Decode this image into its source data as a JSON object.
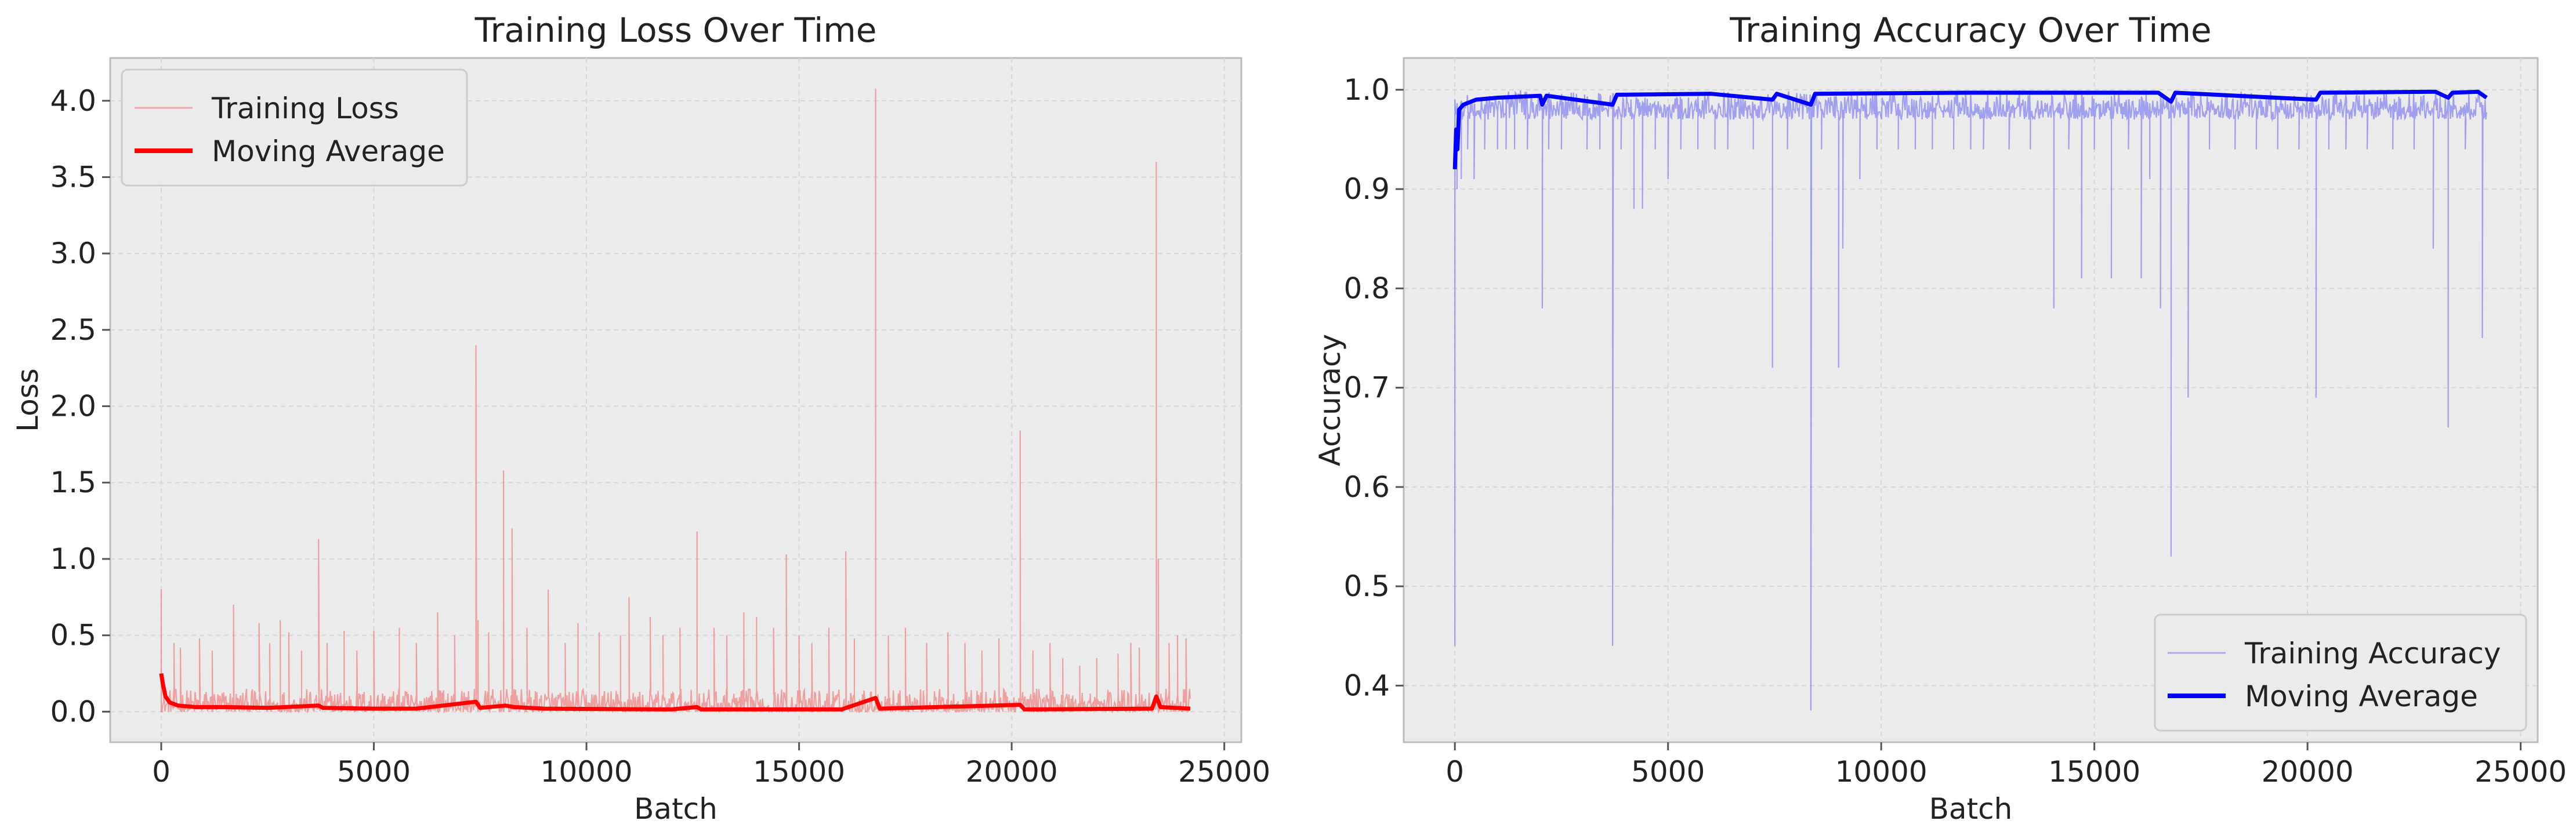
{
  "chart_data": [
    {
      "type": "line",
      "title": "Training Loss Over Time",
      "xlabel": "Batch",
      "ylabel": "Loss",
      "xlim": [
        -1200,
        25400
      ],
      "ylim": [
        -0.2,
        4.28
      ],
      "xticks": [
        0,
        5000,
        10000,
        15000,
        20000,
        25000
      ],
      "xtick_labels": [
        "0",
        "5000",
        "10000",
        "15000",
        "20000",
        "25000"
      ],
      "yticks": [
        0.0,
        0.5,
        1.0,
        1.5,
        2.0,
        2.5,
        3.0,
        3.5,
        4.0
      ],
      "ytick_labels": [
        "0.0",
        "0.5",
        "1.0",
        "1.5",
        "2.0",
        "2.5",
        "3.0",
        "3.5",
        "4.0"
      ],
      "grid": true,
      "legend_position": "upper left",
      "legend": [
        "Training Loss",
        "Moving Average"
      ],
      "colors": {
        "raw": "#f08080",
        "avg": "#ff0000"
      },
      "series": [
        {
          "name": "Training Loss",
          "style": "thin-light",
          "n_batches": 24200,
          "baseline_band": [
            0.0,
            0.15
          ],
          "spikes": [
            [
              0,
              0.8
            ],
            [
              300,
              0.45
            ],
            [
              450,
              0.42
            ],
            [
              900,
              0.48
            ],
            [
              1200,
              0.4
            ],
            [
              1700,
              0.7
            ],
            [
              2300,
              0.58
            ],
            [
              2550,
              0.45
            ],
            [
              2800,
              0.6
            ],
            [
              3000,
              0.52
            ],
            [
              3300,
              0.4
            ],
            [
              3700,
              1.13
            ],
            [
              3900,
              0.45
            ],
            [
              4300,
              0.53
            ],
            [
              4600,
              0.4
            ],
            [
              5000,
              0.53
            ],
            [
              5600,
              0.55
            ],
            [
              6000,
              0.45
            ],
            [
              6500,
              0.65
            ],
            [
              6900,
              0.5
            ],
            [
              7400,
              2.4
            ],
            [
              7450,
              0.6
            ],
            [
              7700,
              0.52
            ],
            [
              8050,
              1.58
            ],
            [
              8250,
              1.2
            ],
            [
              8600,
              0.55
            ],
            [
              9100,
              0.8
            ],
            [
              9500,
              0.45
            ],
            [
              9800,
              0.58
            ],
            [
              10300,
              0.52
            ],
            [
              10800,
              0.5
            ],
            [
              11000,
              0.75
            ],
            [
              11500,
              0.62
            ],
            [
              11800,
              0.5
            ],
            [
              12200,
              0.55
            ],
            [
              12600,
              1.18
            ],
            [
              13000,
              0.55
            ],
            [
              13300,
              0.5
            ],
            [
              13700,
              0.65
            ],
            [
              14000,
              0.62
            ],
            [
              14400,
              0.55
            ],
            [
              14700,
              1.03
            ],
            [
              15000,
              0.5
            ],
            [
              15300,
              0.45
            ],
            [
              15700,
              0.55
            ],
            [
              16100,
              1.05
            ],
            [
              16300,
              0.48
            ],
            [
              16800,
              4.08
            ],
            [
              17100,
              0.5
            ],
            [
              17500,
              0.55
            ],
            [
              18000,
              0.45
            ],
            [
              18500,
              0.52
            ],
            [
              18900,
              0.45
            ],
            [
              19300,
              0.4
            ],
            [
              19700,
              0.48
            ],
            [
              20200,
              1.84
            ],
            [
              20500,
              0.4
            ],
            [
              20900,
              0.45
            ],
            [
              21200,
              0.35
            ],
            [
              21600,
              0.3
            ],
            [
              22000,
              0.35
            ],
            [
              22500,
              0.38
            ],
            [
              22800,
              0.45
            ],
            [
              23000,
              0.42
            ],
            [
              23400,
              3.6
            ],
            [
              23450,
              1.0
            ],
            [
              23700,
              0.45
            ],
            [
              23900,
              0.5
            ],
            [
              24100,
              0.48
            ]
          ]
        },
        {
          "name": "Moving Average",
          "style": "thick",
          "points": [
            [
              0,
              0.25
            ],
            [
              40,
              0.18
            ],
            [
              100,
              0.1
            ],
            [
              200,
              0.06
            ],
            [
              400,
              0.04
            ],
            [
              800,
              0.03
            ],
            [
              1500,
              0.03
            ],
            [
              2500,
              0.025
            ],
            [
              3700,
              0.04
            ],
            [
              3800,
              0.025
            ],
            [
              5000,
              0.02
            ],
            [
              6000,
              0.02
            ],
            [
              7400,
              0.065
            ],
            [
              7500,
              0.025
            ],
            [
              8100,
              0.04
            ],
            [
              8300,
              0.03
            ],
            [
              9000,
              0.02
            ],
            [
              12000,
              0.015
            ],
            [
              12600,
              0.03
            ],
            [
              12700,
              0.015
            ],
            [
              16000,
              0.015
            ],
            [
              16800,
              0.09
            ],
            [
              16900,
              0.02
            ],
            [
              20200,
              0.045
            ],
            [
              20300,
              0.015
            ],
            [
              23300,
              0.02
            ],
            [
              23400,
              0.1
            ],
            [
              23500,
              0.03
            ],
            [
              24200,
              0.02
            ]
          ]
        }
      ]
    },
    {
      "type": "line",
      "title": "Training Accuracy Over Time",
      "xlabel": "Batch",
      "ylabel": "Accuracy",
      "xlim": [
        -1200,
        25400
      ],
      "ylim": [
        0.343,
        1.032
      ],
      "xticks": [
        0,
        5000,
        10000,
        15000,
        20000,
        25000
      ],
      "xtick_labels": [
        "0",
        "5000",
        "10000",
        "15000",
        "20000",
        "25000"
      ],
      "yticks": [
        0.4,
        0.5,
        0.6,
        0.7,
        0.8,
        0.9,
        1.0
      ],
      "ytick_labels": [
        "0.4",
        "0.5",
        "0.6",
        "0.7",
        "0.8",
        "0.9",
        "1.0"
      ],
      "grid": true,
      "legend_position": "lower right",
      "legend": [
        "Training Accuracy",
        "Moving Average"
      ],
      "colors": {
        "raw": "#8080f0",
        "avg": "#0000ff"
      },
      "series": [
        {
          "name": "Training Accuracy",
          "style": "thin-light",
          "n_batches": 24200,
          "baseline_band": [
            0.97,
            1.0
          ],
          "dips": [
            [
              0,
              0.44
            ],
            [
              50,
              0.9
            ],
            [
              150,
              0.91
            ],
            [
              300,
              0.94
            ],
            [
              450,
              0.91
            ],
            [
              700,
              0.94
            ],
            [
              1000,
              0.94
            ],
            [
              1200,
              0.94
            ],
            [
              1400,
              0.94
            ],
            [
              1700,
              0.94
            ],
            [
              2050,
              0.78
            ],
            [
              2200,
              0.94
            ],
            [
              2500,
              0.94
            ],
            [
              3100,
              0.94
            ],
            [
              3400,
              0.94
            ],
            [
              3700,
              0.44
            ],
            [
              3900,
              0.94
            ],
            [
              4200,
              0.88
            ],
            [
              4400,
              0.88
            ],
            [
              4700,
              0.94
            ],
            [
              5000,
              0.91
            ],
            [
              5300,
              0.94
            ],
            [
              5700,
              0.94
            ],
            [
              6100,
              0.94
            ],
            [
              6400,
              0.94
            ],
            [
              7000,
              0.94
            ],
            [
              7450,
              0.72
            ],
            [
              7800,
              0.94
            ],
            [
              8350,
              0.375
            ],
            [
              8600,
              0.94
            ],
            [
              9000,
              0.72
            ],
            [
              9100,
              0.84
            ],
            [
              9500,
              0.91
            ],
            [
              9900,
              0.94
            ],
            [
              10400,
              0.94
            ],
            [
              10800,
              0.94
            ],
            [
              11200,
              0.94
            ],
            [
              11700,
              0.94
            ],
            [
              12100,
              0.94
            ],
            [
              12400,
              0.94
            ],
            [
              13000,
              0.94
            ],
            [
              13500,
              0.94
            ],
            [
              14050,
              0.78
            ],
            [
              14400,
              0.94
            ],
            [
              14700,
              0.81
            ],
            [
              15000,
              0.94
            ],
            [
              15400,
              0.81
            ],
            [
              15800,
              0.94
            ],
            [
              16100,
              0.81
            ],
            [
              16300,
              0.91
            ],
            [
              16550,
              0.78
            ],
            [
              16800,
              0.53
            ],
            [
              17200,
              0.69
            ],
            [
              17700,
              0.94
            ],
            [
              18300,
              0.94
            ],
            [
              18800,
              0.94
            ],
            [
              19300,
              0.94
            ],
            [
              19800,
              0.94
            ],
            [
              20200,
              0.69
            ],
            [
              20500,
              0.94
            ],
            [
              20900,
              0.94
            ],
            [
              21400,
              0.94
            ],
            [
              22000,
              0.94
            ],
            [
              22500,
              0.94
            ],
            [
              22950,
              0.84
            ],
            [
              23300,
              0.66
            ],
            [
              23700,
              0.94
            ],
            [
              24100,
              0.75
            ]
          ]
        },
        {
          "name": "Moving Average",
          "style": "thick",
          "points": [
            [
              0,
              0.92
            ],
            [
              30,
              0.96
            ],
            [
              60,
              0.94
            ],
            [
              100,
              0.98
            ],
            [
              200,
              0.985
            ],
            [
              500,
              0.99
            ],
            [
              1000,
              0.992
            ],
            [
              2000,
              0.994
            ],
            [
              2050,
              0.985
            ],
            [
              2150,
              0.994
            ],
            [
              3700,
              0.985
            ],
            [
              3800,
              0.995
            ],
            [
              6000,
              0.996
            ],
            [
              7450,
              0.99
            ],
            [
              7550,
              0.996
            ],
            [
              8350,
              0.985
            ],
            [
              8450,
              0.996
            ],
            [
              12000,
              0.997
            ],
            [
              16500,
              0.997
            ],
            [
              16800,
              0.988
            ],
            [
              16900,
              0.997
            ],
            [
              20200,
              0.99
            ],
            [
              20300,
              0.997
            ],
            [
              23000,
              0.998
            ],
            [
              23300,
              0.992
            ],
            [
              23400,
              0.997
            ],
            [
              24000,
              0.998
            ],
            [
              24200,
              0.992
            ]
          ]
        }
      ]
    }
  ]
}
